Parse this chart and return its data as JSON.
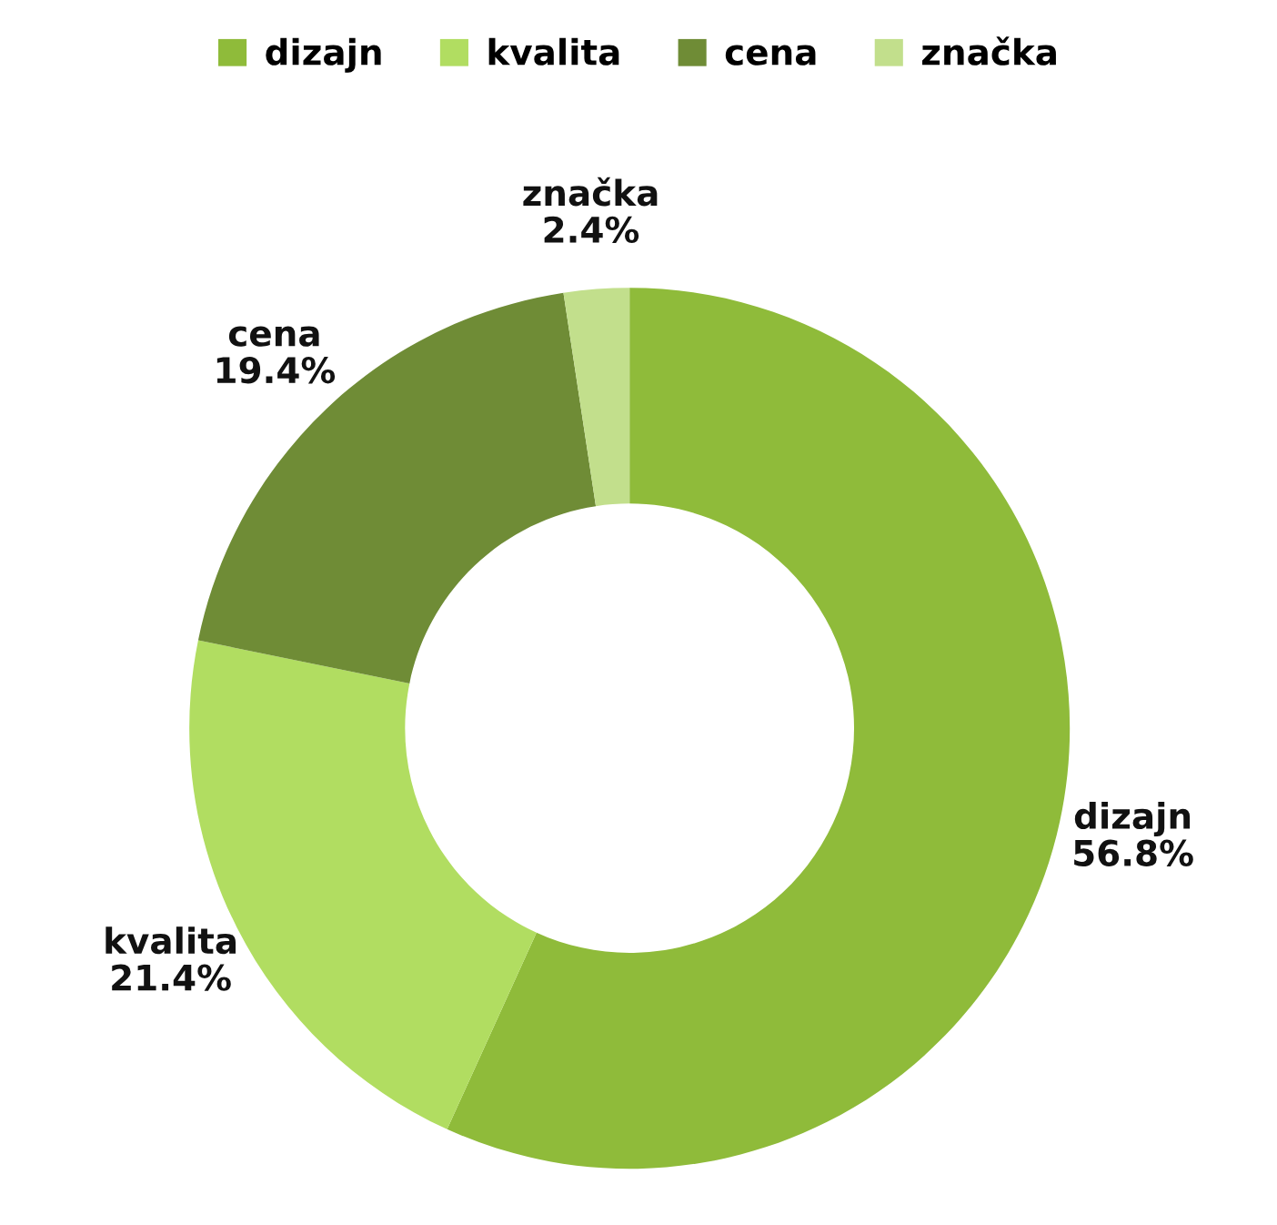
{
  "chart_data": {
    "type": "donut",
    "categories": [
      "dizajn",
      "kvalita",
      "cena",
      "značka"
    ],
    "values": [
      56.8,
      21.4,
      19.4,
      2.4
    ],
    "value_labels": [
      "56.8%",
      "21.4%",
      "19.4%",
      "2.4%"
    ],
    "colors": [
      "#8fbb3a",
      "#b1dd61",
      "#6f8c36",
      "#c2df8c"
    ],
    "legend": "top"
  }
}
